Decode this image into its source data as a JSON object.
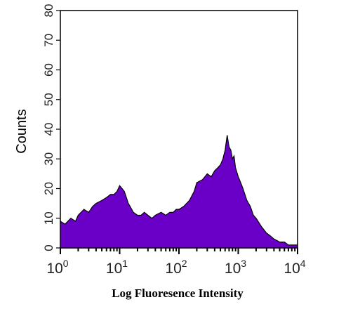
{
  "chart_data": {
    "type": "area",
    "xlabel": "Log Fluoresence Intensity",
    "ylabel": "Counts",
    "x_scale": "log",
    "xlim": [
      1,
      10000
    ],
    "ylim": [
      0,
      80
    ],
    "y_ticks": [
      "0",
      "10",
      "20",
      "30",
      "40",
      "50",
      "60",
      "70",
      "80"
    ],
    "x_ticks": [
      {
        "base": "10",
        "exp": "0"
      },
      {
        "base": "10",
        "exp": "1"
      },
      {
        "base": "10",
        "exp": "2"
      },
      {
        "base": "10",
        "exp": "3"
      },
      {
        "base": "10",
        "exp": "4"
      }
    ],
    "fill_color": "#6a00c8",
    "edge_color": "#000000",
    "series": [
      {
        "x": [
          1,
          1.2,
          1.5,
          1.8,
          2,
          2.5,
          3,
          3.5,
          4,
          5,
          6,
          7,
          8,
          9,
          10,
          11,
          12,
          13,
          14,
          15,
          17,
          20,
          23,
          26,
          30,
          35,
          40,
          50,
          60,
          70,
          80,
          90,
          100,
          120,
          150,
          180,
          200,
          250,
          300,
          350,
          400,
          450,
          500,
          550,
          600,
          650,
          700,
          750,
          800,
          850,
          900,
          1000,
          1100,
          1200,
          1400,
          1600,
          1800,
          2000,
          2500,
          3000,
          3500,
          4000,
          5000,
          6000,
          7000,
          8000,
          9000,
          10000
        ],
        "values": [
          9,
          8,
          10,
          9,
          11,
          13,
          12,
          14,
          15,
          16,
          17,
          18,
          18,
          19,
          21,
          20,
          19,
          17,
          15,
          14,
          12,
          11,
          11,
          12,
          11,
          10,
          11,
          12,
          11,
          12,
          12,
          13,
          13,
          14,
          16,
          19,
          22,
          23,
          25,
          24,
          26,
          27,
          28,
          30,
          33,
          38,
          34,
          33,
          30,
          31,
          27,
          24,
          22,
          20,
          16,
          14,
          11,
          10,
          7,
          5,
          4,
          3,
          2,
          2,
          1,
          1,
          1,
          1
        ]
      }
    ]
  }
}
